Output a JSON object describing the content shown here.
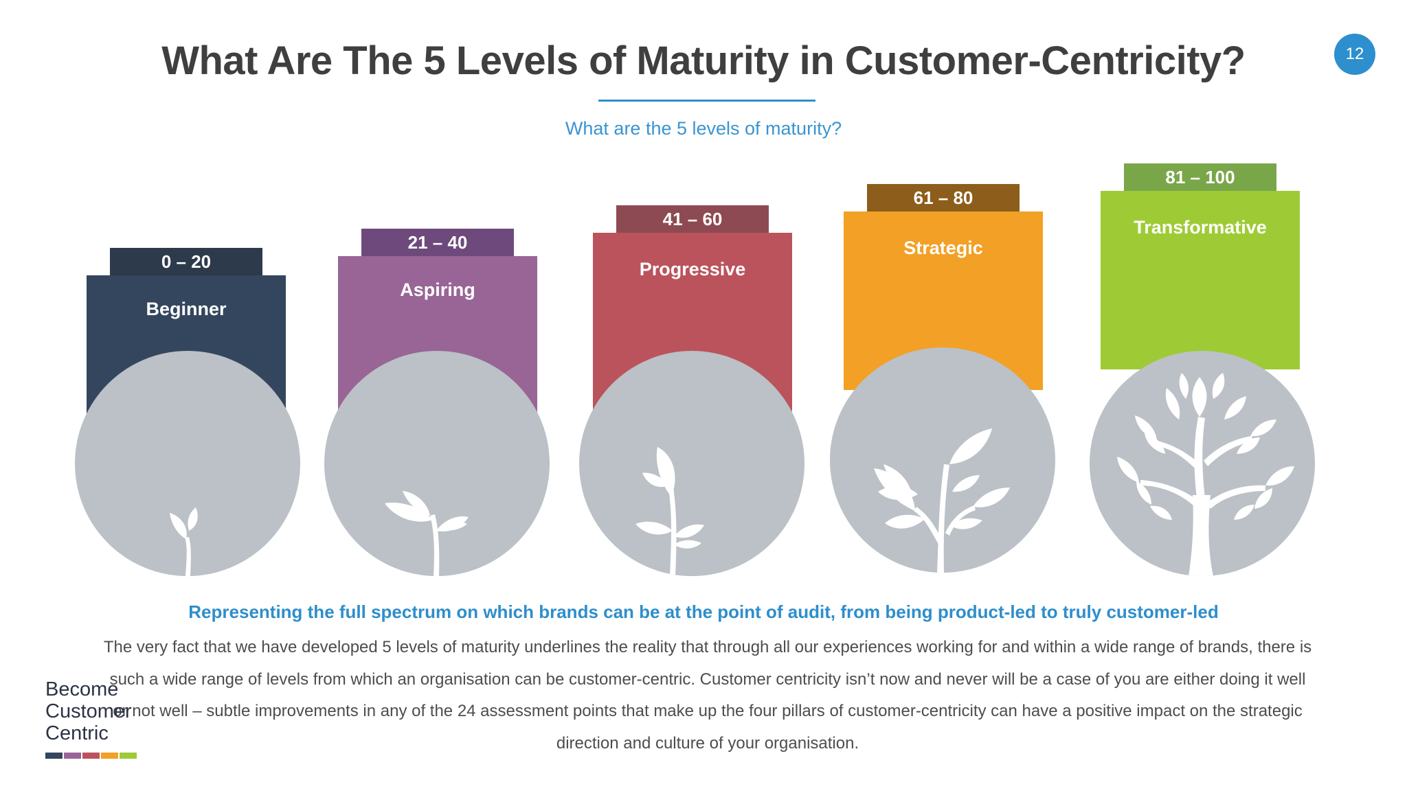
{
  "header": {
    "title": "What Are The 5 Levels of Maturity in Customer-Centricity?",
    "subtitle": "What are the 5 levels of maturity?",
    "page_number": "12"
  },
  "levels": [
    {
      "range": "0 – 20",
      "name": "Beginner",
      "tab_color": "#2c3a4c",
      "block_color": "#34465e",
      "icon": "seedling-icon"
    },
    {
      "range": "21 – 40",
      "name": "Aspiring",
      "tab_color": "#6e4a7c",
      "block_color": "#986596",
      "icon": "sprout-icon"
    },
    {
      "range": "41 – 60",
      "name": "Progressive",
      "tab_color": "#8e4a52",
      "block_color": "#bb535c",
      "icon": "young-plant-icon"
    },
    {
      "range": "61 – 80",
      "name": "Strategic",
      "tab_color": "#8d5d1b",
      "block_color": "#f2a026",
      "icon": "leafy-plant-icon"
    },
    {
      "range": "81 – 100",
      "name": "Transformative",
      "tab_color": "#7aa64a",
      "block_color": "#9ecb35",
      "icon": "tree-icon"
    }
  ],
  "tagline": "Representing the full spectrum on which brands can be at the point of audit, from being product-led to truly customer-led",
  "body_text": "The very fact that we have developed 5 levels of maturity underlines the reality that through all our experiences working for and within a wide range of brands, there is such a wide range of levels from which an organisation can be customer-centric. Customer centricity isn’t now and never will be a case of you are either doing it well or not well – subtle improvements in any of the 24 assessment points that make up the four pillars of customer-centricity can have a positive impact on the strategic direction and culture of your organisation.",
  "logo": {
    "line1": "Become",
    "line2": "Customer",
    "line3": "Centric",
    "bar_colors": [
      "#34465e",
      "#986596",
      "#bb535c",
      "#f2a026",
      "#9ecb35"
    ]
  }
}
